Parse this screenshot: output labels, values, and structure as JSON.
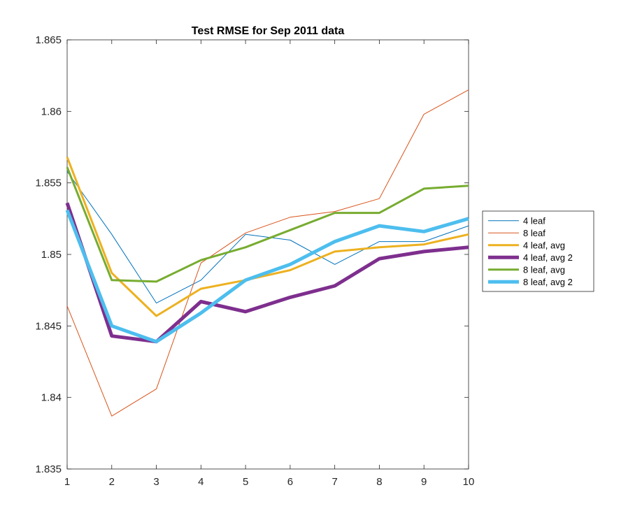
{
  "chart_data": {
    "type": "line",
    "title": "Test RMSE for Sep 2011 data",
    "xlabel": "",
    "ylabel": "",
    "x": [
      1,
      2,
      3,
      4,
      5,
      6,
      7,
      8,
      9,
      10
    ],
    "xlim": [
      1,
      10
    ],
    "ylim": [
      1.835,
      1.865
    ],
    "xticks": [
      "1",
      "2",
      "3",
      "4",
      "5",
      "6",
      "7",
      "8",
      "9",
      "10"
    ],
    "yticks": [
      {
        "value": 1.835,
        "label": "1.835"
      },
      {
        "value": 1.84,
        "label": "1.84"
      },
      {
        "value": 1.845,
        "label": "1.845"
      },
      {
        "value": 1.85,
        "label": "1.85"
      },
      {
        "value": 1.855,
        "label": "1.855"
      },
      {
        "value": 1.86,
        "label": "1.86"
      },
      {
        "value": 1.865,
        "label": "1.865"
      }
    ],
    "grid": false,
    "legend_position": "right",
    "series": [
      {
        "name": "4 leaf",
        "color": "#0072BD",
        "width": 1,
        "values": [
          1.8558,
          1.8514,
          1.8466,
          1.8482,
          1.8514,
          1.851,
          1.8493,
          1.8509,
          1.8509,
          1.852
        ]
      },
      {
        "name": "8 leaf",
        "color": "#D95319",
        "width": 1,
        "values": [
          1.8464,
          1.8387,
          1.8406,
          1.8494,
          1.8515,
          1.8526,
          1.853,
          1.8539,
          1.8598,
          1.8615
        ]
      },
      {
        "name": "4 leaf, avg",
        "color": "#EDB120",
        "width": 3,
        "values": [
          1.8568,
          1.8487,
          1.8457,
          1.8476,
          1.8482,
          1.8489,
          1.8502,
          1.8505,
          1.8507,
          1.8514
        ]
      },
      {
        "name": "4 leaf, avg 2",
        "color": "#7E2F8E",
        "width": 5,
        "values": [
          1.8536,
          1.8443,
          1.8439,
          1.8467,
          1.846,
          1.847,
          1.8478,
          1.8497,
          1.8502,
          1.8505
        ]
      },
      {
        "name": "8 leaf, avg",
        "color": "#77AC30",
        "width": 3,
        "values": [
          1.8561,
          1.8482,
          1.8481,
          1.8496,
          1.8505,
          1.8517,
          1.8529,
          1.8529,
          1.8546,
          1.8548
        ]
      },
      {
        "name": "8 leaf, avg 2",
        "color": "#4DBEEE",
        "width": 5,
        "values": [
          1.8531,
          1.845,
          1.8439,
          1.8459,
          1.8482,
          1.8493,
          1.8509,
          1.852,
          1.8516,
          1.8525
        ]
      }
    ]
  }
}
